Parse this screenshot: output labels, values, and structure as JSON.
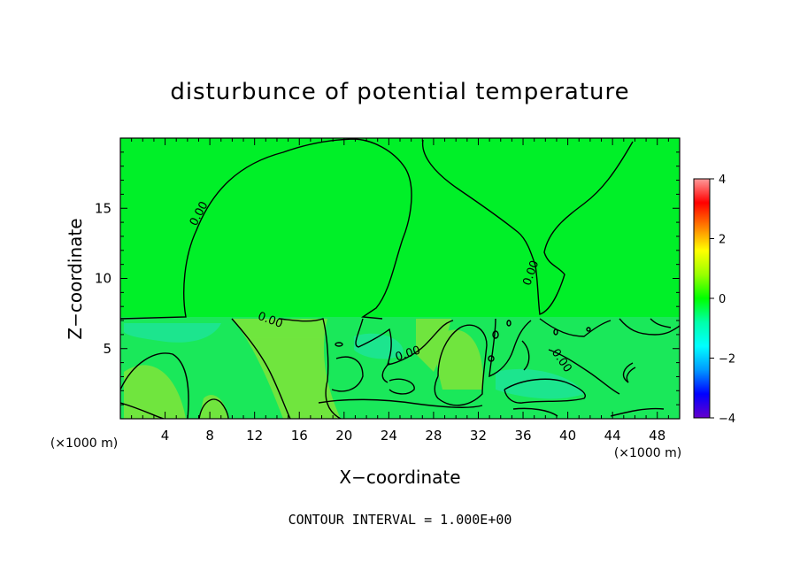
{
  "chart_data": {
    "type": "heatmap",
    "title": "disturbunce of potential temperature",
    "xlabel": "X−coordinate",
    "ylabel": "Z−coordinate",
    "x_unit_left": "(×1000 m)",
    "x_unit_right": "(×1000 m)",
    "footer": "CONTOUR INTERVAL = 1.000E+00",
    "xlim": [
      0,
      50
    ],
    "ylim": [
      0,
      20
    ],
    "x_ticks": [
      4,
      8,
      12,
      16,
      20,
      24,
      28,
      32,
      36,
      40,
      44,
      48
    ],
    "y_ticks": [
      5,
      10,
      15
    ],
    "colorbar": {
      "range": [
        -4,
        4
      ],
      "ticks": [
        4,
        2,
        0,
        -2,
        -4
      ],
      "tick_labels": [
        "4",
        "2",
        "0",
        "−2",
        "−4"
      ],
      "colors": [
        "#ff9a9a",
        "#ff0000",
        "#ff7f00",
        "#ffff00",
        "#9aff00",
        "#00ff00",
        "#00ffaa",
        "#00ffff",
        "#0099ff",
        "#0000ff",
        "#6600cc"
      ]
    },
    "field_colors": {
      "background": "#00f028",
      "lower_layer": "#1ae85a",
      "warm_patch": "#7fe53a",
      "cool_patch": "#1ee4a0"
    },
    "contour_labels": [
      {
        "text": "0.00",
        "x": 7.3,
        "z": 14.5
      },
      {
        "text": "0.00",
        "x": 37.0,
        "z": 10.3
      },
      {
        "text": "0.00",
        "x": 13.3,
        "z": 6.8
      },
      {
        "text": "0.00",
        "x": 25.8,
        "z": 4.4
      },
      {
        "text": "0.00",
        "x": 39.2,
        "z": 4.0
      }
    ]
  }
}
